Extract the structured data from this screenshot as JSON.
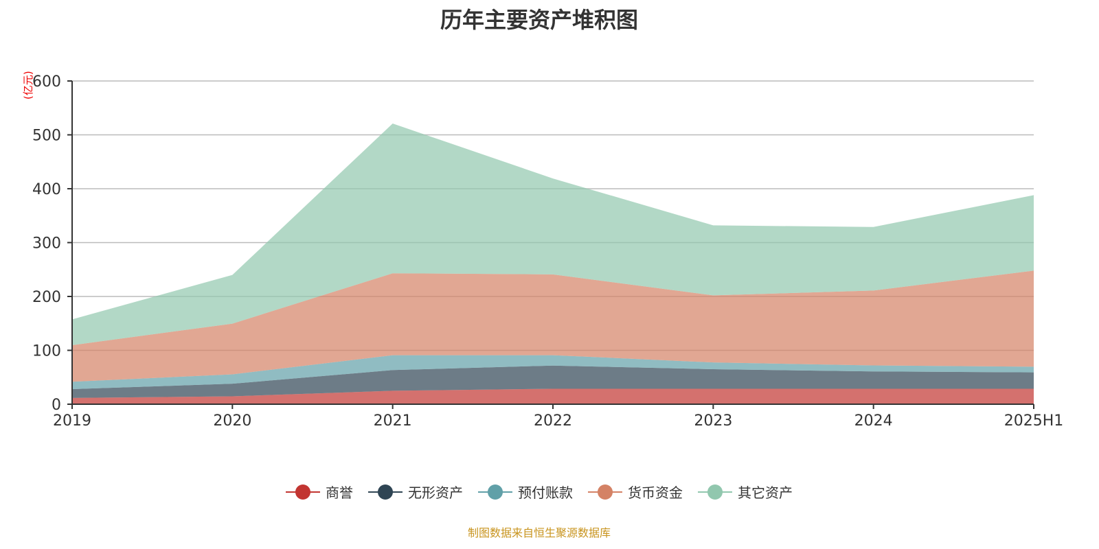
{
  "chart_data": {
    "type": "area",
    "stacked": true,
    "title": "历年主要资产堆积图",
    "ylabel": "(亿元)",
    "ylim": [
      0,
      600
    ],
    "yticks": [
      0,
      100,
      200,
      300,
      400,
      500,
      600
    ],
    "grid": true,
    "legend_position": "bottom",
    "categories": [
      "2019",
      "2020",
      "2021",
      "2022",
      "2023",
      "2024",
      "2025H1"
    ],
    "series": [
      {
        "name": "商誉",
        "color": "#c23531",
        "values": [
          11.7,
          14.6,
          25.0,
          28.7,
          28.7,
          28.7,
          28.7
        ]
      },
      {
        "name": "无形资产",
        "color": "#2f4554",
        "values": [
          16.3,
          23.4,
          38.3,
          43.0,
          36.3,
          32.1,
          30.3
        ]
      },
      {
        "name": "预付账款",
        "color": "#61a0a8",
        "values": [
          13.7,
          17.4,
          27.7,
          19.3,
          12.5,
          11.2,
          10.6
        ]
      },
      {
        "name": "货币资金",
        "color": "#d48265",
        "values": [
          67.9,
          94.2,
          152.0,
          150.0,
          124.5,
          139.0,
          178.4
        ]
      },
      {
        "name": "其它资产",
        "color": "#91c7ae",
        "values": [
          47.9,
          90.4,
          278.0,
          178.0,
          130.0,
          118.0,
          140.0
        ]
      }
    ]
  },
  "footer": "制图数据来自恒生聚源数据库"
}
